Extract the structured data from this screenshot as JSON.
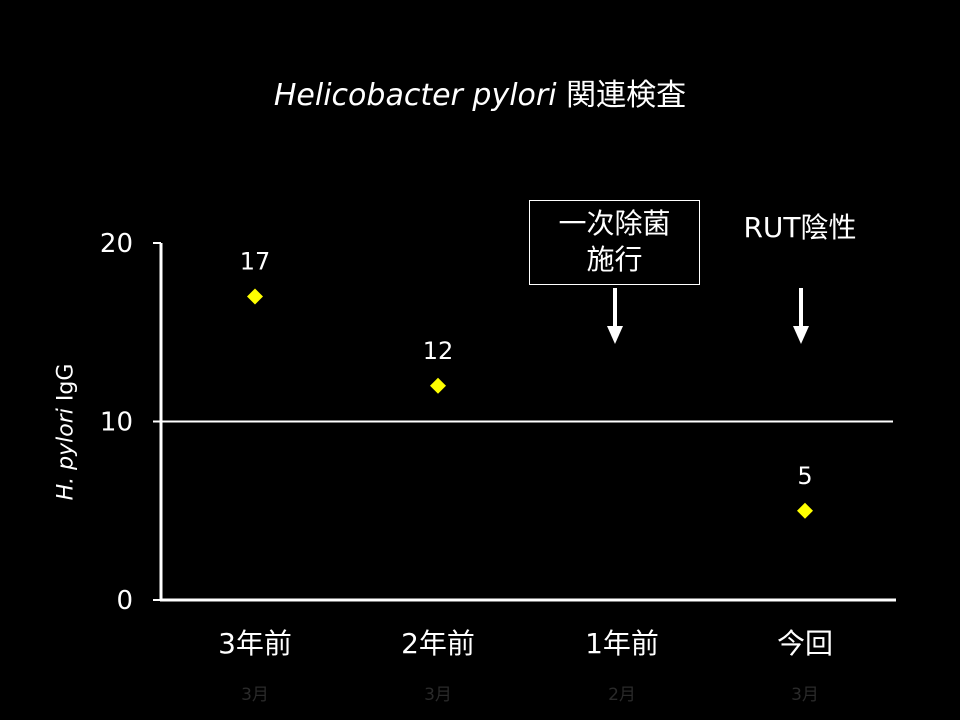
{
  "chart_data": {
    "type": "scatter",
    "title_italic": "Helicobacter pylori",
    "title_rest": " 関連検査",
    "ylabel_italic": "H. pylori",
    "ylabel_rest": " IgG",
    "ylim": [
      0,
      20
    ],
    "y_ticks": [
      "0",
      "10",
      "20"
    ],
    "reference_line": 10,
    "categories": [
      "3年前",
      "2年前",
      "1年前",
      "今回"
    ],
    "sub_labels": [
      "3月",
      "3月",
      "2月",
      "3月"
    ],
    "points": [
      {
        "category": "3年前",
        "value": 17,
        "label": "17"
      },
      {
        "category": "2年前",
        "value": 12,
        "label": "12"
      },
      {
        "category": "今回",
        "value": 5,
        "label": "5"
      }
    ],
    "marker_color": "#FFFF00",
    "annotations": [
      {
        "category": "1年前",
        "text_line1": "一次除菌",
        "text_line2": "施行",
        "boxed": true
      },
      {
        "category": "今回",
        "text_line1": "RUT陰性",
        "boxed": false
      }
    ]
  }
}
